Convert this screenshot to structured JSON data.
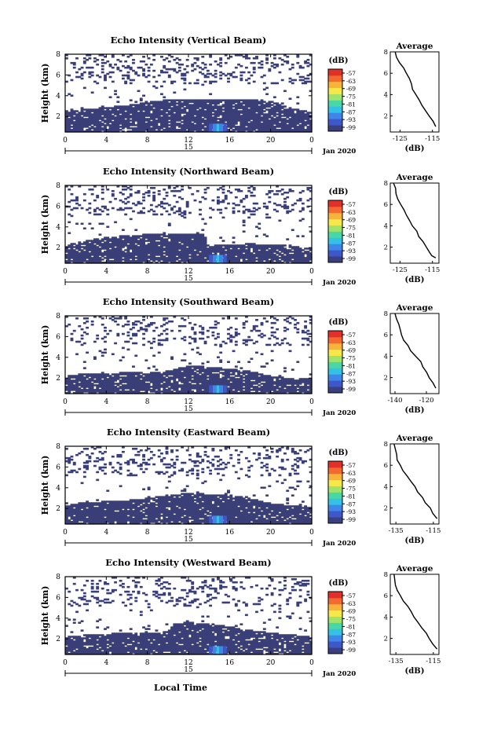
{
  "xaxis_title": "Local Time",
  "date_label": "Jan 2020",
  "colorbar": {
    "unit": "(dB)",
    "ticks": [
      "-57",
      "-63",
      "-69",
      "-75",
      "-81",
      "-87",
      "-93",
      "-99"
    ],
    "colors": [
      "#3a3f7e",
      "#3f57c9",
      "#3f86e8",
      "#35c0e6",
      "#4ad7a6",
      "#9fe36a",
      "#f4e84a",
      "#f7b43a",
      "#f26a30",
      "#e0302a"
    ]
  },
  "echo_color": "#3b3f78",
  "line_color": "#000000",
  "chart_data": [
    {
      "type": "heatmap",
      "title": "Echo Intensity (Vertical Beam)",
      "ylabel": "Height (km)",
      "xlabel": "Local Time",
      "xticks": [
        "0",
        "4",
        "8",
        "12",
        "16",
        "20",
        "0"
      ],
      "xdate_tick": "15",
      "yticks": [
        "2",
        "4",
        "6",
        "8"
      ],
      "xlim": [
        0,
        24
      ],
      "ylim": [
        0.5,
        8
      ],
      "clim": [
        -99,
        -57
      ],
      "boundary_layer_top_km": [
        {
          "t": 0,
          "h": 2.6
        },
        {
          "t": 2,
          "h": 2.7
        },
        {
          "t": 4,
          "h": 2.9
        },
        {
          "t": 6,
          "h": 3.1
        },
        {
          "t": 8,
          "h": 3.5
        },
        {
          "t": 10,
          "h": 3.6
        },
        {
          "t": 12,
          "h": 3.7
        },
        {
          "t": 14,
          "h": 3.7
        },
        {
          "t": 16,
          "h": 3.7
        },
        {
          "t": 18,
          "h": 3.7
        },
        {
          "t": 20,
          "h": 3.5
        },
        {
          "t": 22,
          "h": 2.8
        },
        {
          "t": 24,
          "h": 2.5
        }
      ],
      "average_profile": {
        "title": "Average",
        "xlabel": "(dB)",
        "xticks": [
          "-125",
          "-115"
        ],
        "xlim": [
          -128,
          -113
        ],
        "yticks": [
          "2",
          "4",
          "6",
          "8"
        ],
        "ylim": [
          0.5,
          8
        ],
        "x": [
          -126.5,
          -126,
          -125.2,
          -124,
          -123,
          -122,
          -121.5,
          -121,
          -120,
          -119,
          -118,
          -117,
          -116,
          -115,
          -114
        ],
        "y": [
          8,
          7.5,
          7,
          6.5,
          6,
          5.5,
          5,
          4.5,
          4,
          3.5,
          3,
          2.5,
          2,
          1.5,
          1
        ]
      }
    },
    {
      "type": "heatmap",
      "title": "Echo Intensity (Northward Beam)",
      "ylabel": "Height (km)",
      "xlabel": "Local Time",
      "xticks": [
        "0",
        "4",
        "8",
        "12",
        "16",
        "20",
        "0"
      ],
      "xdate_tick": "15",
      "yticks": [
        "2",
        "4",
        "6",
        "8"
      ],
      "xlim": [
        0,
        24
      ],
      "ylim": [
        0.5,
        8
      ],
      "clim": [
        -99,
        -57
      ],
      "boundary_layer_top_km": [
        {
          "t": 0,
          "h": 2.3
        },
        {
          "t": 2,
          "h": 2.7
        },
        {
          "t": 4,
          "h": 3.0
        },
        {
          "t": 6,
          "h": 3.2
        },
        {
          "t": 8,
          "h": 3.3
        },
        {
          "t": 10,
          "h": 3.4
        },
        {
          "t": 12,
          "h": 3.4
        },
        {
          "t": 13.5,
          "h": 3.4
        },
        {
          "t": 14,
          "h": 2.2
        },
        {
          "t": 16,
          "h": 2.3
        },
        {
          "t": 18,
          "h": 2.4
        },
        {
          "t": 20,
          "h": 2.3
        },
        {
          "t": 22,
          "h": 2.2
        },
        {
          "t": 24,
          "h": 2.0
        }
      ],
      "average_profile": {
        "title": "Average",
        "xlabel": "(dB)",
        "xticks": [
          "-125",
          "-115"
        ],
        "xlim": [
          -128,
          -113
        ],
        "yticks": [
          "2",
          "4",
          "6",
          "8"
        ],
        "ylim": [
          0.5,
          8
        ],
        "x": [
          -127,
          -126.5,
          -126,
          -125.5,
          -125,
          -124,
          -123,
          -122,
          -121,
          -120,
          -119,
          -118,
          -117,
          -116,
          -115,
          -114
        ],
        "y": [
          8,
          7.5,
          7,
          6.5,
          6,
          5.5,
          5,
          4.5,
          4,
          3.5,
          3,
          2.5,
          2,
          1.5,
          1.2,
          1
        ]
      }
    },
    {
      "type": "heatmap",
      "title": "Echo Intensity (Southward Beam)",
      "ylabel": "Height (km)",
      "xlabel": "Local Time",
      "xticks": [
        "0",
        "4",
        "8",
        "12",
        "16",
        "20",
        "0"
      ],
      "xdate_tick": "15",
      "yticks": [
        "2",
        "4",
        "6",
        "8"
      ],
      "xlim": [
        0,
        24
      ],
      "ylim": [
        0.5,
        8
      ],
      "clim": [
        -99,
        -57
      ],
      "boundary_layer_top_km": [
        {
          "t": 0,
          "h": 2.2
        },
        {
          "t": 2,
          "h": 2.5
        },
        {
          "t": 4,
          "h": 2.4
        },
        {
          "t": 6,
          "h": 2.6
        },
        {
          "t": 8,
          "h": 2.5
        },
        {
          "t": 10,
          "h": 2.7
        },
        {
          "t": 12,
          "h": 3.2
        },
        {
          "t": 14,
          "h": 3.1
        },
        {
          "t": 16,
          "h": 2.9
        },
        {
          "t": 18,
          "h": 2.7
        },
        {
          "t": 20,
          "h": 2.2
        },
        {
          "t": 22,
          "h": 2.0
        },
        {
          "t": 24,
          "h": 2.0
        }
      ],
      "average_profile": {
        "title": "Average",
        "xlabel": "(dB)",
        "xticks": [
          "-140",
          "-120"
        ],
        "xlim": [
          -143,
          -112
        ],
        "yticks": [
          "2",
          "4",
          "6",
          "8"
        ],
        "ylim": [
          0.5,
          8
        ],
        "x": [
          -140,
          -139,
          -138,
          -137,
          -136,
          -134,
          -132,
          -130,
          -127,
          -124,
          -122,
          -120,
          -118,
          -116,
          -114
        ],
        "y": [
          8,
          7.5,
          7,
          6.5,
          6,
          5.5,
          5,
          4.5,
          4,
          3.5,
          3,
          2.5,
          2,
          1.5,
          1
        ]
      }
    },
    {
      "type": "heatmap",
      "title": "Echo Intensity (Eastward Beam)",
      "ylabel": "Height (km)",
      "xlabel": "Local Time",
      "xticks": [
        "0",
        "4",
        "8",
        "12",
        "16",
        "20",
        "0"
      ],
      "xdate_tick": "15",
      "yticks": [
        "2",
        "4",
        "6",
        "8"
      ],
      "xlim": [
        0,
        24
      ],
      "ylim": [
        0.5,
        8
      ],
      "clim": [
        -99,
        -57
      ],
      "boundary_layer_top_km": [
        {
          "t": 0,
          "h": 2.3
        },
        {
          "t": 2,
          "h": 2.6
        },
        {
          "t": 4,
          "h": 2.7
        },
        {
          "t": 6,
          "h": 2.8
        },
        {
          "t": 8,
          "h": 3.0
        },
        {
          "t": 10,
          "h": 3.3
        },
        {
          "t": 12,
          "h": 3.5
        },
        {
          "t": 14,
          "h": 3.4
        },
        {
          "t": 16,
          "h": 3.3
        },
        {
          "t": 18,
          "h": 3.0
        },
        {
          "t": 20,
          "h": 2.5
        },
        {
          "t": 22,
          "h": 2.3
        },
        {
          "t": 24,
          "h": 2.2
        }
      ],
      "average_profile": {
        "title": "Average",
        "xlabel": "(dB)",
        "xticks": [
          "-135",
          "-115"
        ],
        "xlim": [
          -138,
          -112
        ],
        "yticks": [
          "2",
          "4",
          "6",
          "8"
        ],
        "ylim": [
          0.5,
          8
        ],
        "x": [
          -136,
          -135.5,
          -135,
          -134,
          -133,
          -131,
          -129,
          -127,
          -125,
          -123,
          -121,
          -119,
          -117,
          -115,
          -113
        ],
        "y": [
          8,
          7.5,
          7,
          6.5,
          6,
          5.5,
          5,
          4.5,
          4,
          3.5,
          3,
          2.5,
          2,
          1.5,
          1
        ]
      }
    },
    {
      "type": "heatmap",
      "title": "Echo Intensity (Westward Beam)",
      "ylabel": "Height (km)",
      "xlabel": "Local Time",
      "xticks": [
        "0",
        "4",
        "8",
        "12",
        "16",
        "20",
        "0"
      ],
      "xdate_tick": "15",
      "yticks": [
        "2",
        "4",
        "6",
        "8"
      ],
      "xlim": [
        0,
        24
      ],
      "ylim": [
        0.5,
        8
      ],
      "clim": [
        -99,
        -57
      ],
      "boundary_layer_top_km": [
        {
          "t": 0,
          "h": 2.2
        },
        {
          "t": 2,
          "h": 2.4
        },
        {
          "t": 4,
          "h": 2.5
        },
        {
          "t": 6,
          "h": 2.6
        },
        {
          "t": 8,
          "h": 2.6
        },
        {
          "t": 10,
          "h": 2.7
        },
        {
          "t": 10.5,
          "h": 3.5
        },
        {
          "t": 12,
          "h": 3.6
        },
        {
          "t": 14,
          "h": 3.5
        },
        {
          "t": 16,
          "h": 3.2
        },
        {
          "t": 18,
          "h": 2.9
        },
        {
          "t": 20,
          "h": 2.6
        },
        {
          "t": 22,
          "h": 2.4
        },
        {
          "t": 24,
          "h": 2.2
        }
      ],
      "average_profile": {
        "title": "Average",
        "xlabel": "(dB)",
        "xticks": [
          "-135",
          "-115"
        ],
        "xlim": [
          -138,
          -112
        ],
        "yticks": [
          "2",
          "4",
          "6",
          "8"
        ],
        "ylim": [
          0.5,
          8
        ],
        "x": [
          -136,
          -135.5,
          -135,
          -134,
          -133,
          -131,
          -129,
          -127,
          -125,
          -123,
          -121,
          -119,
          -117,
          -115,
          -113
        ],
        "y": [
          8,
          7.5,
          7,
          6.5,
          6,
          5.5,
          5,
          4.5,
          4,
          3.5,
          3,
          2.5,
          2,
          1.5,
          1
        ]
      }
    }
  ]
}
